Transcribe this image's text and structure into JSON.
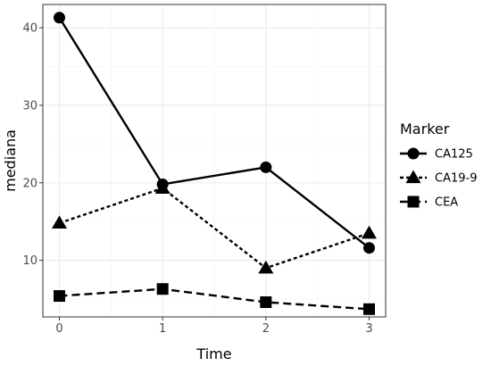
{
  "chart_data": {
    "type": "line",
    "xlabel": "Time",
    "ylabel": "mediana",
    "x": [
      0,
      1,
      2,
      3
    ],
    "xlim": [
      -0.16,
      3.16
    ],
    "ylim": [
      2.7,
      43.0
    ],
    "x_ticks": [
      0,
      1,
      2,
      3
    ],
    "y_ticks": [
      10,
      20,
      30,
      40
    ],
    "grid": true,
    "legend": {
      "title": "Marker",
      "position": "right"
    },
    "series": [
      {
        "name": "CA125",
        "values": [
          41.3,
          19.8,
          22.0,
          11.6
        ],
        "marker": "circle",
        "dash": "solid"
      },
      {
        "name": "CA19-9",
        "values": [
          14.8,
          19.3,
          9.0,
          13.5
        ],
        "marker": "triangle",
        "dash": "dotted"
      },
      {
        "name": "CEA",
        "values": [
          5.4,
          6.3,
          4.6,
          3.7
        ],
        "marker": "square",
        "dash": "dashed"
      }
    ],
    "colors": {
      "line": "#000000",
      "grid_major": "#ebebeb",
      "grid_minor": "#f5f5f5",
      "panel_border": "#333333"
    }
  }
}
